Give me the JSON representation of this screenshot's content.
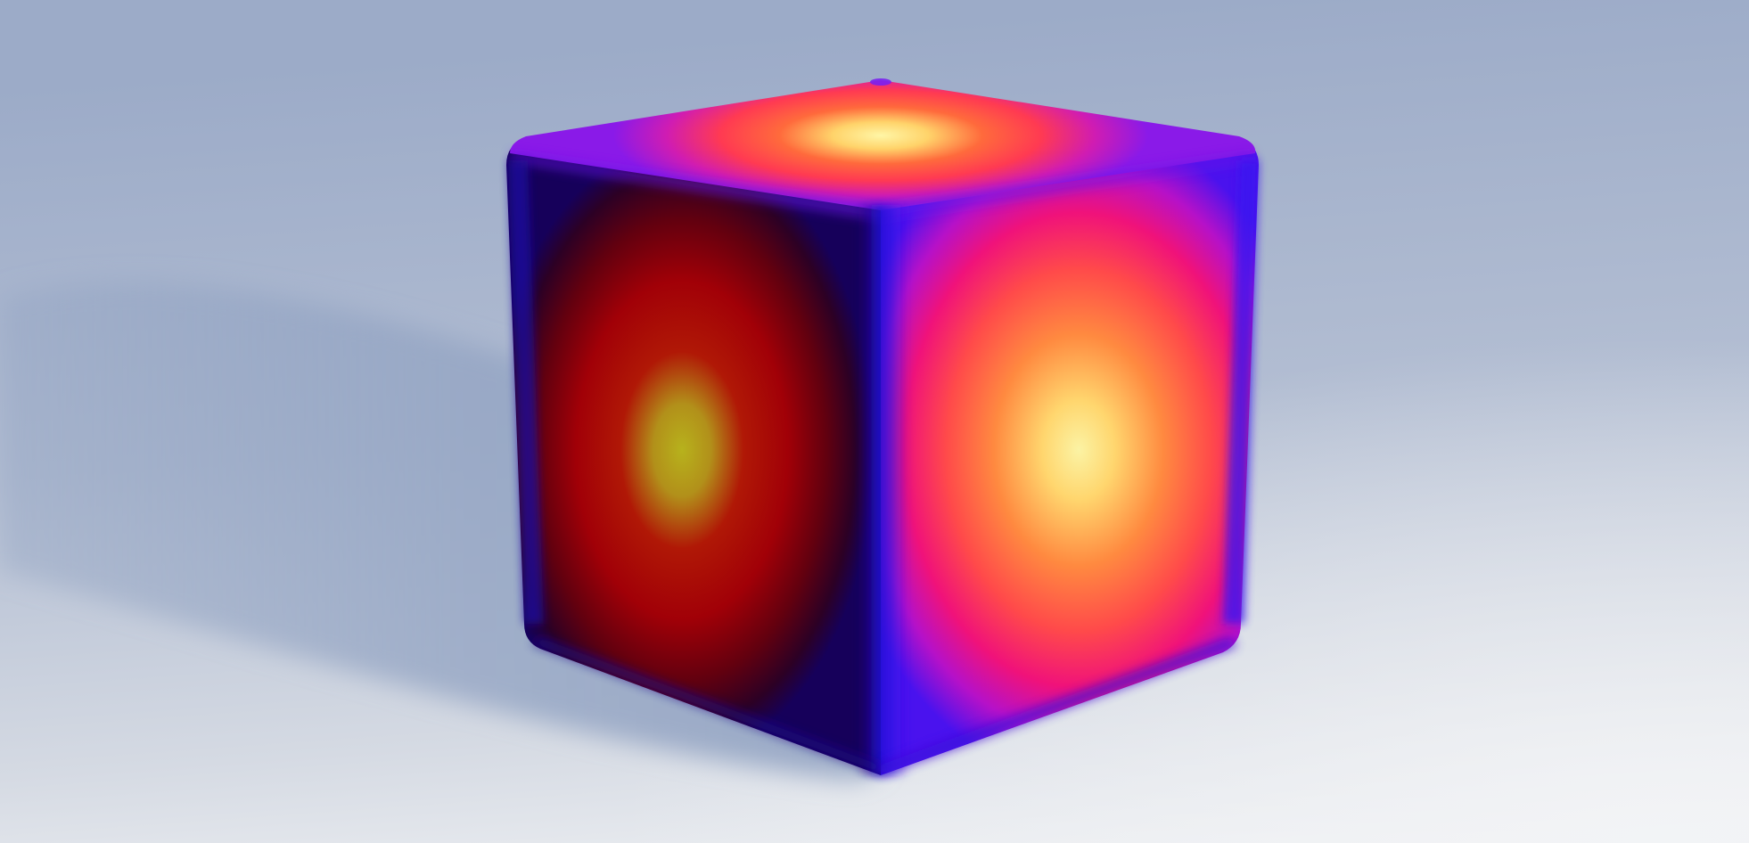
{
  "scene": {
    "subject": "cube",
    "colors": {
      "background_top": "#9fafca",
      "background_bottom": "#eceef2",
      "shadow": "#9aa9c6",
      "edge_dark": "#1a0a6e",
      "edge_blue": "#2a14e6",
      "edge_purple": "#7a1bf0",
      "face_magenta": "#c41ba8",
      "face_orange_red": "#ff4a3a",
      "face_orange": "#ff7f3c",
      "face_hot_center": "#fff49c",
      "left_face_dark": "#3a0018",
      "left_face_red": "#b00008",
      "left_face_center": "#b9b21a"
    }
  }
}
